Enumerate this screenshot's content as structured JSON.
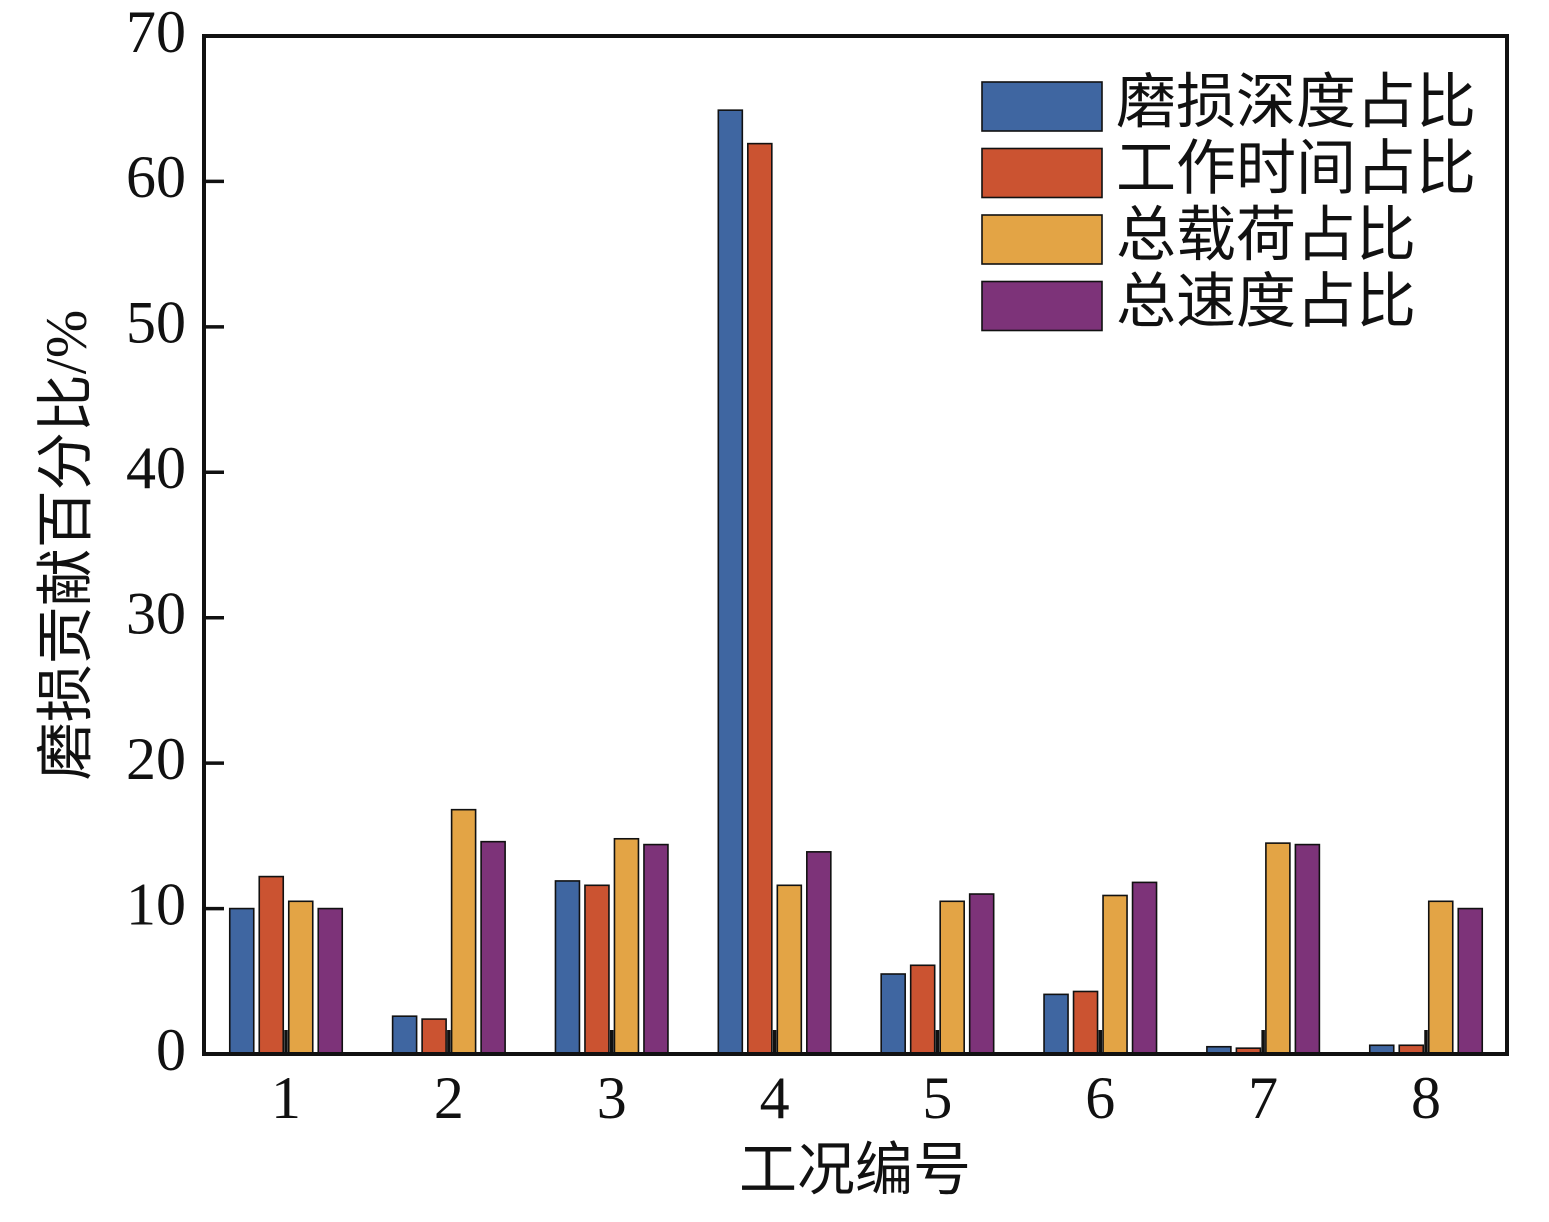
{
  "chart_data": {
    "type": "bar",
    "categories": [
      "1",
      "2",
      "3",
      "4",
      "5",
      "6",
      "7",
      "8"
    ],
    "series": [
      {
        "name": "磨损深度占比",
        "color": "#3f66a1",
        "values": [
          10.0,
          2.6,
          11.9,
          64.9,
          5.5,
          4.1,
          0.5,
          0.6
        ]
      },
      {
        "name": "工作时间占比",
        "color": "#cb5331",
        "values": [
          12.2,
          2.4,
          11.6,
          62.6,
          6.1,
          4.3,
          0.4,
          0.6
        ]
      },
      {
        "name": "总载荷占比",
        "color": "#e3a445",
        "values": [
          10.5,
          16.8,
          14.8,
          11.6,
          10.5,
          10.9,
          14.5,
          10.5
        ]
      },
      {
        "name": "总速度占比",
        "color": "#7d3379",
        "values": [
          10.0,
          14.6,
          14.4,
          13.9,
          11.0,
          11.8,
          14.4,
          10.0
        ]
      }
    ],
    "xlabel": "工况编号",
    "ylabel": "磨损贡献百分比/%",
    "ylim": [
      0,
      70
    ],
    "yticks": [
      "0",
      "10",
      "20",
      "30",
      "40",
      "50",
      "60",
      "70"
    ],
    "legend": "top-right",
    "grid": false
  }
}
